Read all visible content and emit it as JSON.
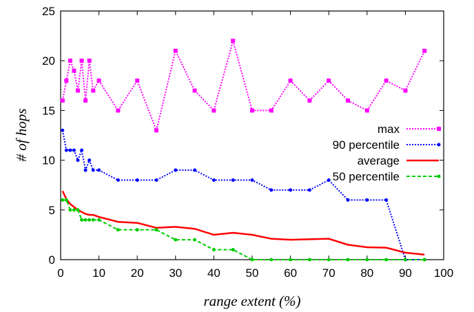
{
  "chart_data": {
    "type": "line",
    "xlabel": "range extent (%)",
    "ylabel": "# of hops",
    "xlim": [
      0,
      100
    ],
    "ylim": [
      0,
      25
    ],
    "xticks": [
      0,
      10,
      20,
      30,
      40,
      50,
      60,
      70,
      80,
      90,
      100
    ],
    "yticks": [
      0,
      5,
      10,
      15,
      20,
      25
    ],
    "grid": false,
    "legend_position": "right",
    "series": [
      {
        "name": "max",
        "color": "#ff00ff",
        "style": "dotted",
        "marker": "square",
        "x": [
          0.5,
          1.5,
          2.5,
          3.5,
          4.5,
          5.5,
          6.5,
          7.5,
          8.5,
          10,
          15,
          20,
          25,
          30,
          35,
          40,
          45,
          50,
          55,
          60,
          65,
          70,
          75,
          80,
          85,
          90,
          95
        ],
        "y": [
          16,
          18,
          20,
          19,
          17,
          20,
          16,
          20,
          17,
          18,
          15,
          18,
          13,
          21,
          17,
          15,
          22,
          15,
          15,
          18,
          16,
          18,
          16,
          15,
          18,
          17,
          21
        ]
      },
      {
        "name": "90 percentile",
        "color": "#0000ff",
        "style": "dotted",
        "marker": "dot",
        "x": [
          0.5,
          1.5,
          2.5,
          3.5,
          4.5,
          5.5,
          6.5,
          7.5,
          8.5,
          10,
          15,
          20,
          25,
          30,
          35,
          40,
          45,
          50,
          55,
          60,
          65,
          70,
          75,
          80,
          85,
          90,
          95
        ],
        "y": [
          13,
          11,
          11,
          11,
          10,
          11,
          9,
          10,
          9,
          9,
          8,
          8,
          8,
          9,
          9,
          8,
          8,
          8,
          7,
          7,
          7,
          8,
          6,
          6,
          6,
          0,
          0
        ]
      },
      {
        "name": "average",
        "color": "#ff0000",
        "style": "solid",
        "marker": "none",
        "x": [
          0.5,
          1.5,
          2.5,
          3.5,
          4.5,
          5.5,
          6.5,
          7.5,
          8.5,
          10,
          15,
          20,
          25,
          30,
          35,
          40,
          45,
          50,
          55,
          60,
          65,
          70,
          75,
          80,
          85,
          90,
          95
        ],
        "y": [
          6.9,
          6.1,
          5.6,
          5.3,
          5.0,
          4.8,
          4.6,
          4.5,
          4.5,
          4.3,
          3.8,
          3.7,
          3.2,
          3.3,
          3.1,
          2.5,
          2.7,
          2.5,
          2.1,
          2.0,
          2.05,
          2.1,
          1.5,
          1.25,
          1.2,
          0.7,
          0.5
        ]
      },
      {
        "name": "50 percentile",
        "color": "#00cc00",
        "style": "dashed",
        "marker": "dot",
        "x": [
          0.5,
          1.5,
          2.5,
          3.5,
          4.5,
          5.5,
          6.5,
          7.5,
          8.5,
          10,
          15,
          20,
          25,
          30,
          35,
          40,
          45,
          50,
          55,
          60,
          65,
          70,
          75,
          80,
          85,
          90,
          95
        ],
        "y": [
          6,
          6,
          5,
          5,
          5,
          4,
          4,
          4,
          4,
          4,
          3,
          3,
          3,
          2,
          2,
          1,
          1,
          0,
          0,
          0,
          0,
          0,
          0,
          0,
          0,
          0,
          0
        ]
      }
    ]
  }
}
